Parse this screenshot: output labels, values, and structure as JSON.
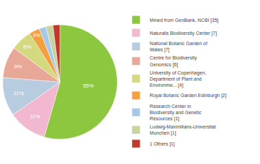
{
  "chart_data": {
    "type": "pie",
    "categories": [
      "Mined from GenBank, NCBI [35]",
      "Naturalis Biodiversity Center [7]",
      "National Botanic Garden of\nWales [7]",
      "Centre for Biodiversity\nGenomics [6]",
      "University of Copenhagen,\nDepartment of Plant and\nEnvironme... [4]",
      "Royal Botanic Garden Edinburgh [2]",
      "Research Center in\nBiodiversity and Genetic\nResources [1]",
      "Ludwig-Maximilians-Universitat\nMunchen [1]",
      "1 Others [1]"
    ],
    "values": [
      55,
      11,
      11,
      9,
      6,
      3,
      2,
      2,
      2
    ],
    "value_labels": [
      "55%",
      "11%",
      "11%",
      "9%",
      "6%",
      "3%",
      null,
      null,
      null
    ],
    "colors": [
      "#8DC63F",
      "#F2B8CF",
      "#B8CCE0",
      "#E8A898",
      "#D4D980",
      "#F4A040",
      "#A8C8E8",
      "#C8D4A0",
      "#C0392B"
    ],
    "data_labels": true,
    "legend": "right"
  }
}
